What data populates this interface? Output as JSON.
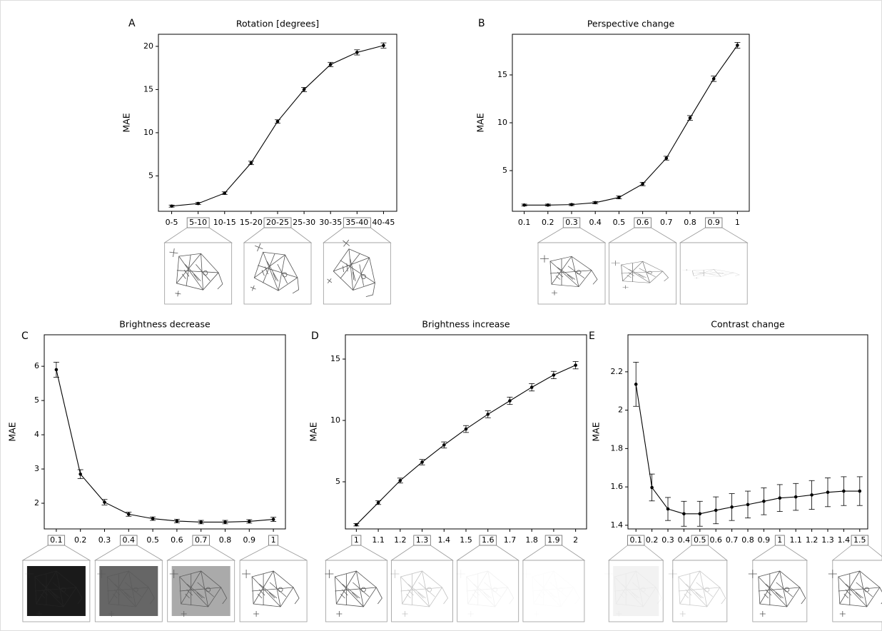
{
  "chart_data": [
    {
      "type": "line",
      "panel": "A",
      "title": "Rotation [degrees]",
      "y_label": "MAE",
      "categories": [
        "0-5",
        "5-10",
        "10-15",
        "15-20",
        "20-25",
        "25-30",
        "30-35",
        "35-40",
        "40-45"
      ],
      "values": [
        1.5,
        1.8,
        3.0,
        6.5,
        11.3,
        15.0,
        17.9,
        19.3,
        20.1
      ],
      "errors": [
        0.12,
        0.12,
        0.15,
        0.2,
        0.2,
        0.25,
        0.25,
        0.3,
        0.3
      ],
      "ylim": [
        0.9,
        21.4
      ],
      "yticks": [
        5,
        10,
        15,
        20
      ],
      "thumbnail_categories": [
        1,
        4,
        7
      ],
      "color": "#000000"
    },
    {
      "type": "line",
      "panel": "B",
      "title": "Perspective change",
      "y_label": "MAE",
      "categories": [
        "0.1",
        "0.2",
        "0.3",
        "0.4",
        "0.5",
        "0.6",
        "0.7",
        "0.8",
        "0.9",
        "1"
      ],
      "values": [
        1.4,
        1.4,
        1.45,
        1.65,
        2.2,
        3.6,
        6.3,
        10.5,
        14.6,
        18.1
      ],
      "errors": [
        0.1,
        0.1,
        0.1,
        0.12,
        0.15,
        0.18,
        0.2,
        0.25,
        0.28,
        0.3
      ],
      "ylim": [
        0.75,
        19.25
      ],
      "yticks": [
        5,
        10,
        15
      ],
      "thumbnail_categories": [
        2,
        5,
        8
      ],
      "color": "#000000"
    },
    {
      "type": "line",
      "panel": "C",
      "title": "Brightness decrease",
      "y_label": "MAE",
      "categories": [
        "0.1",
        "0.2",
        "0.3",
        "0.4",
        "0.5",
        "0.6",
        "0.7",
        "0.8",
        "0.9",
        "1"
      ],
      "values": [
        5.9,
        2.85,
        2.03,
        1.68,
        1.55,
        1.48,
        1.45,
        1.45,
        1.47,
        1.53
      ],
      "errors": [
        0.22,
        0.13,
        0.08,
        0.06,
        0.05,
        0.05,
        0.05,
        0.05,
        0.05,
        0.06
      ],
      "ylim": [
        1.25,
        6.92
      ],
      "yticks": [
        2,
        3,
        4,
        5,
        6
      ],
      "thumbnail_categories": [
        0,
        3,
        6,
        9
      ],
      "color": "#000000"
    },
    {
      "type": "line",
      "panel": "D",
      "title": "Brightness increase",
      "y_label": "MAE",
      "categories": [
        "1",
        "1.1",
        "1.2",
        "1.3",
        "1.4",
        "1.5",
        "1.6",
        "1.7",
        "1.8",
        "1.9",
        "2"
      ],
      "values": [
        1.5,
        3.3,
        5.1,
        6.6,
        8.0,
        9.3,
        10.5,
        11.6,
        12.7,
        13.7,
        14.5
      ],
      "errors": [
        0.1,
        0.15,
        0.2,
        0.22,
        0.25,
        0.28,
        0.28,
        0.3,
        0.3,
        0.3,
        0.3
      ],
      "ylim": [
        1.16,
        16.98
      ],
      "yticks": [
        5,
        10,
        15
      ],
      "thumbnail_categories": [
        0,
        3,
        6,
        9
      ],
      "color": "#000000"
    },
    {
      "type": "line",
      "panel": "E",
      "title": "Contrast change",
      "y_label": "MAE",
      "categories": [
        "0.1",
        "0.2",
        "0.3",
        "0.4",
        "0.5",
        "0.6",
        "0.7",
        "0.8",
        "0.9",
        "1",
        "1.1",
        "1.2",
        "1.3",
        "1.4",
        "1.5"
      ],
      "values": [
        2.135,
        1.597,
        1.485,
        1.46,
        1.46,
        1.478,
        1.495,
        1.508,
        1.525,
        1.542,
        1.548,
        1.558,
        1.572,
        1.578,
        1.578
      ],
      "errors": [
        0.115,
        0.07,
        0.06,
        0.065,
        0.065,
        0.07,
        0.07,
        0.07,
        0.07,
        0.07,
        0.07,
        0.075,
        0.075,
        0.075,
        0.075
      ],
      "ylim": [
        1.381,
        2.393
      ],
      "yticks": [
        1.4,
        1.6,
        1.8,
        2,
        2.2
      ],
      "thumbnail_categories": [
        0,
        4,
        9,
        14
      ],
      "color": "#000000"
    }
  ]
}
